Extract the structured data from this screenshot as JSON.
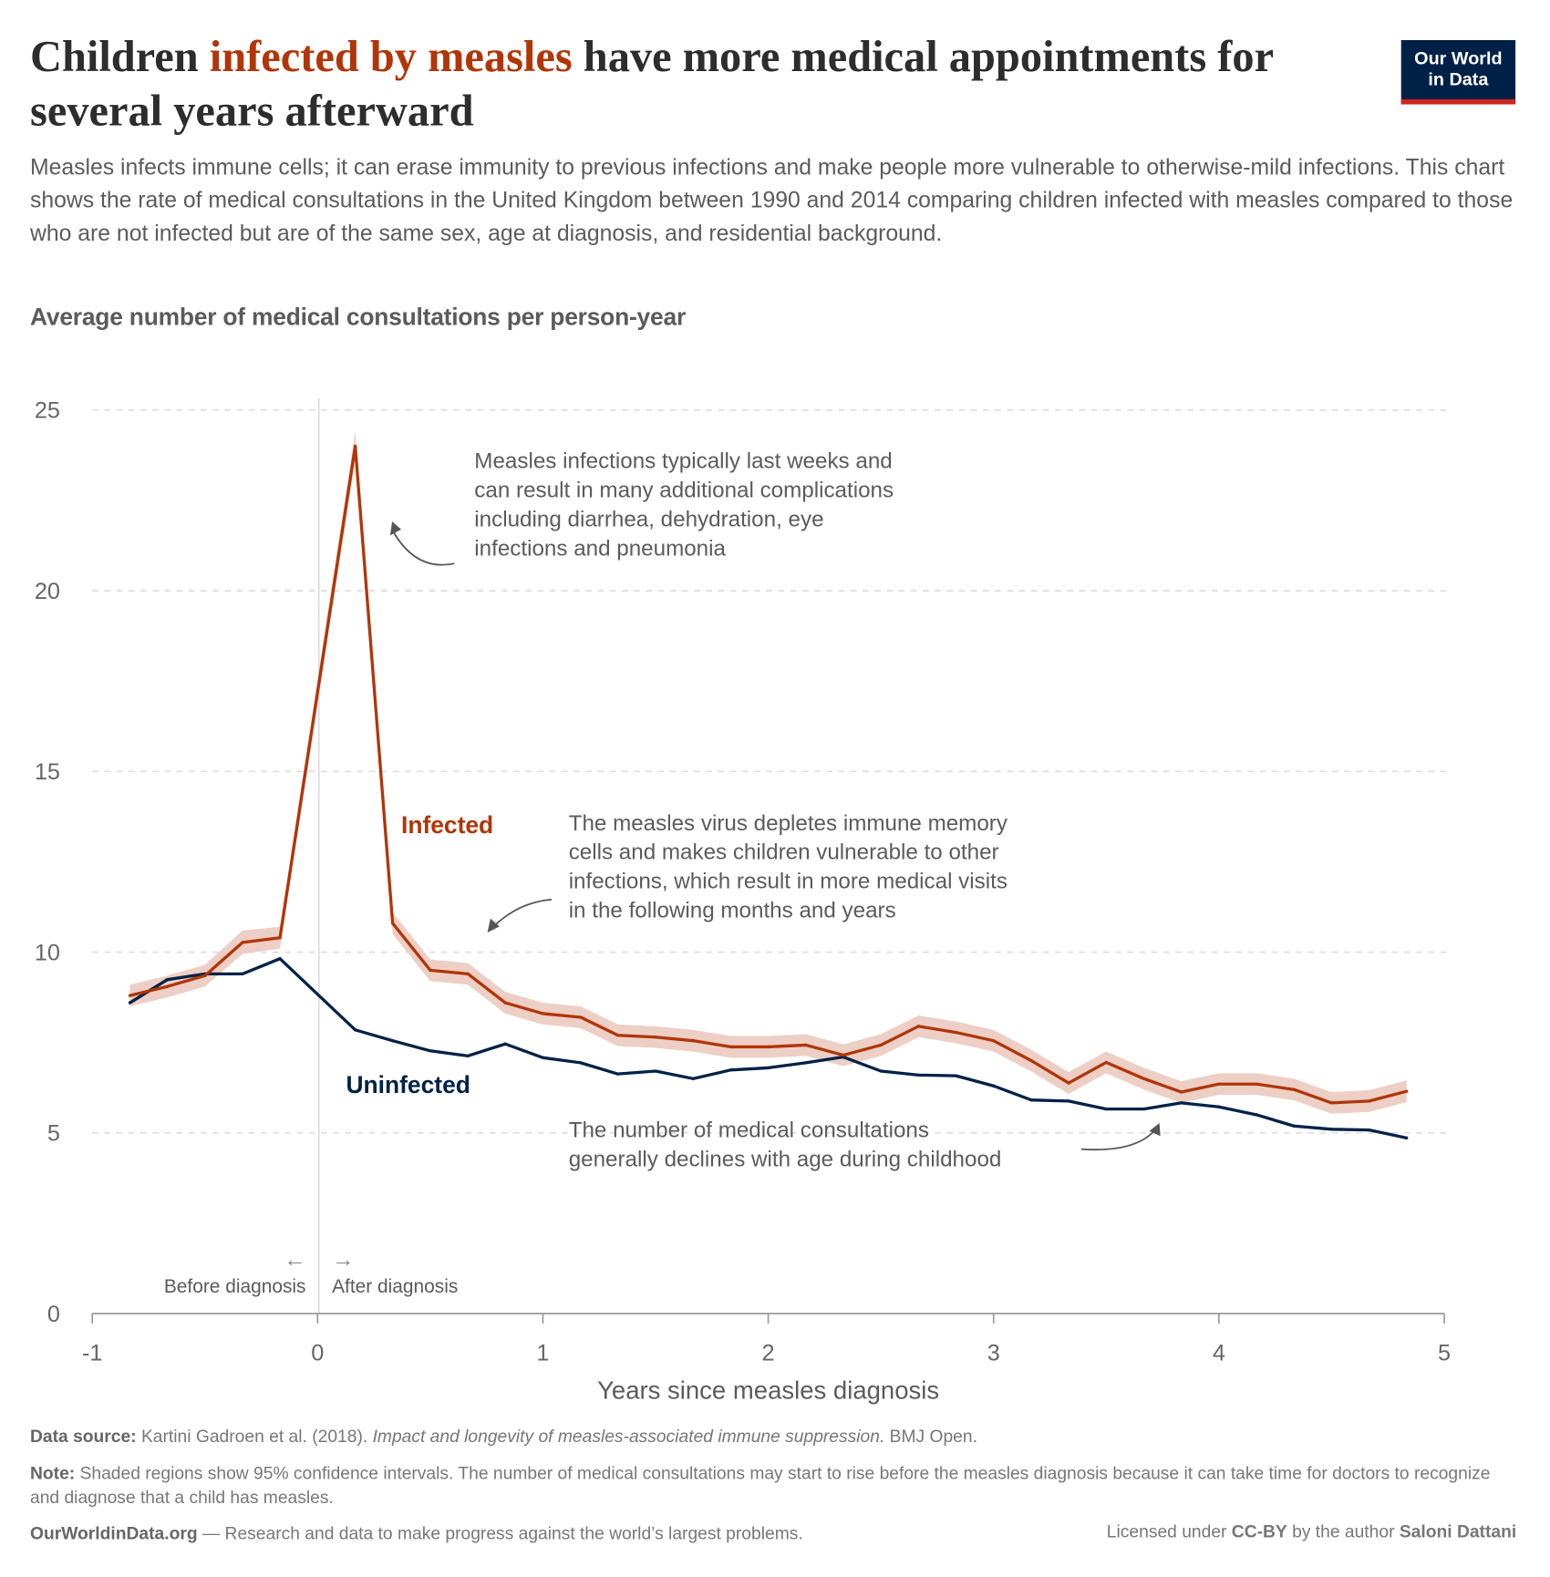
{
  "header": {
    "title_part1": "Children ",
    "title_highlight": "infected by measles",
    "title_part2": " have more medical appointments for several years afterward",
    "subtitle": "Measles infects immune cells; it can erase immunity to previous infections and make people more vulnerable to otherwise-mild infections. This chart shows the rate of medical consultations in the United Kingdom between 1990 and 2014 comparing children infected with measles compared to those who are not infected but are of the same sex, age at diagnosis, and residential background.",
    "y_heading": "Average number of medical consultations per person-year",
    "logo_line1": "Our World",
    "logo_line2": "in Data"
  },
  "colors": {
    "infected": "#b13507",
    "uninfected": "#002147",
    "band": "#edcfc5",
    "highlight": "#b13507",
    "logo_bg": "#002147",
    "logo_bar": "#ce261e"
  },
  "chart_data": {
    "type": "line",
    "xlabel": "Years since measles diagnosis",
    "ylabel": "Average number of medical consultations per person-year",
    "xlim": [
      -1,
      5
    ],
    "ylim": [
      0,
      25
    ],
    "x_ticks": [
      "-1",
      "0",
      "1",
      "2",
      "3",
      "4",
      "5"
    ],
    "y_ticks": [
      "0",
      "5",
      "10",
      "15",
      "20",
      "25"
    ],
    "grid": "horizontal dashed",
    "x": [
      -0.833,
      -0.667,
      -0.5,
      -0.333,
      -0.167,
      0.167,
      0.333,
      0.5,
      0.667,
      0.833,
      1.0,
      1.167,
      1.333,
      1.5,
      1.667,
      1.833,
      2.0,
      2.167,
      2.333,
      2.5,
      2.667,
      2.833,
      3.0,
      3.167,
      3.333,
      3.5,
      3.667,
      3.833,
      4.0,
      4.167,
      4.333,
      4.5,
      4.667,
      4.833
    ],
    "series": [
      {
        "name": "Infected",
        "color": "#b13507",
        "values": [
          8.8,
          9.05,
          9.35,
          10.27,
          10.4,
          24.0,
          10.8,
          9.5,
          9.4,
          8.6,
          8.3,
          8.2,
          7.7,
          7.65,
          7.55,
          7.38,
          7.38,
          7.43,
          7.15,
          7.43,
          7.95,
          7.78,
          7.55,
          7.0,
          6.38,
          6.95,
          6.5,
          6.13,
          6.35,
          6.35,
          6.2,
          5.83,
          5.88,
          6.15
        ],
        "ci_low": [
          8.5,
          8.75,
          9.05,
          9.95,
          10.1,
          23.6,
          10.5,
          9.2,
          9.1,
          8.3,
          8.0,
          7.9,
          7.4,
          7.35,
          7.25,
          7.08,
          7.08,
          7.13,
          6.85,
          7.13,
          7.65,
          7.48,
          7.25,
          6.7,
          6.08,
          6.65,
          6.2,
          5.83,
          6.05,
          6.05,
          5.9,
          5.53,
          5.58,
          5.85
        ],
        "ci_high": [
          9.1,
          9.35,
          9.65,
          10.6,
          10.7,
          24.4,
          11.1,
          9.8,
          9.7,
          8.9,
          8.6,
          8.5,
          8.0,
          7.95,
          7.85,
          7.68,
          7.68,
          7.73,
          7.45,
          7.73,
          8.25,
          8.08,
          7.85,
          7.3,
          6.68,
          7.25,
          6.8,
          6.43,
          6.65,
          6.65,
          6.5,
          6.13,
          6.18,
          6.45
        ]
      },
      {
        "name": "Uninfected",
        "color": "#002147",
        "values": [
          8.6,
          9.24,
          9.4,
          9.4,
          9.82,
          7.85,
          7.55,
          7.27,
          7.13,
          7.46,
          7.08,
          6.94,
          6.63,
          6.71,
          6.5,
          6.74,
          6.8,
          6.94,
          7.1,
          6.71,
          6.6,
          6.58,
          6.3,
          5.91,
          5.88,
          5.66,
          5.66,
          5.83,
          5.72,
          5.5,
          5.19,
          5.1,
          5.08,
          4.86
        ]
      }
    ],
    "legend": "inline labels",
    "annotations": {
      "spike": [
        "Measles infections typically last weeks and",
        "can result in many additional complications",
        "including diarrhea, dehydration, eye",
        "infections and pneumonia"
      ],
      "memory": [
        "The measles virus depletes immune memory",
        "cells and makes children vulnerable to other",
        "infections, which result in more medical visits",
        "in the following months and years"
      ],
      "decline": [
        "The number of medical consultations",
        "generally declines with age during childhood"
      ],
      "before": "Before diagnosis",
      "after": "After diagnosis",
      "before_arrow": "←",
      "after_arrow": "→"
    }
  },
  "footer": {
    "source_label": "Data source:",
    "source_text": " Kartini Gadroen et al. (2018). ",
    "source_title": "Impact and longevity of measles-associated immune suppression.",
    "source_pub": " BMJ Open.",
    "note_label": "Note:",
    "note_text": " Shaded regions show 95% confidence intervals. The number of medical consultations may start to rise before the measles diagnosis because it can take time for doctors to recognize and diagnose that a child has measles.",
    "site": "OurWorldinData.org",
    "tagline": " — Research and data to make progress against the world’s largest problems.",
    "license_pre": "Licensed under ",
    "license": "CC-BY",
    "license_mid": " by the author ",
    "author": "Saloni Dattani"
  }
}
